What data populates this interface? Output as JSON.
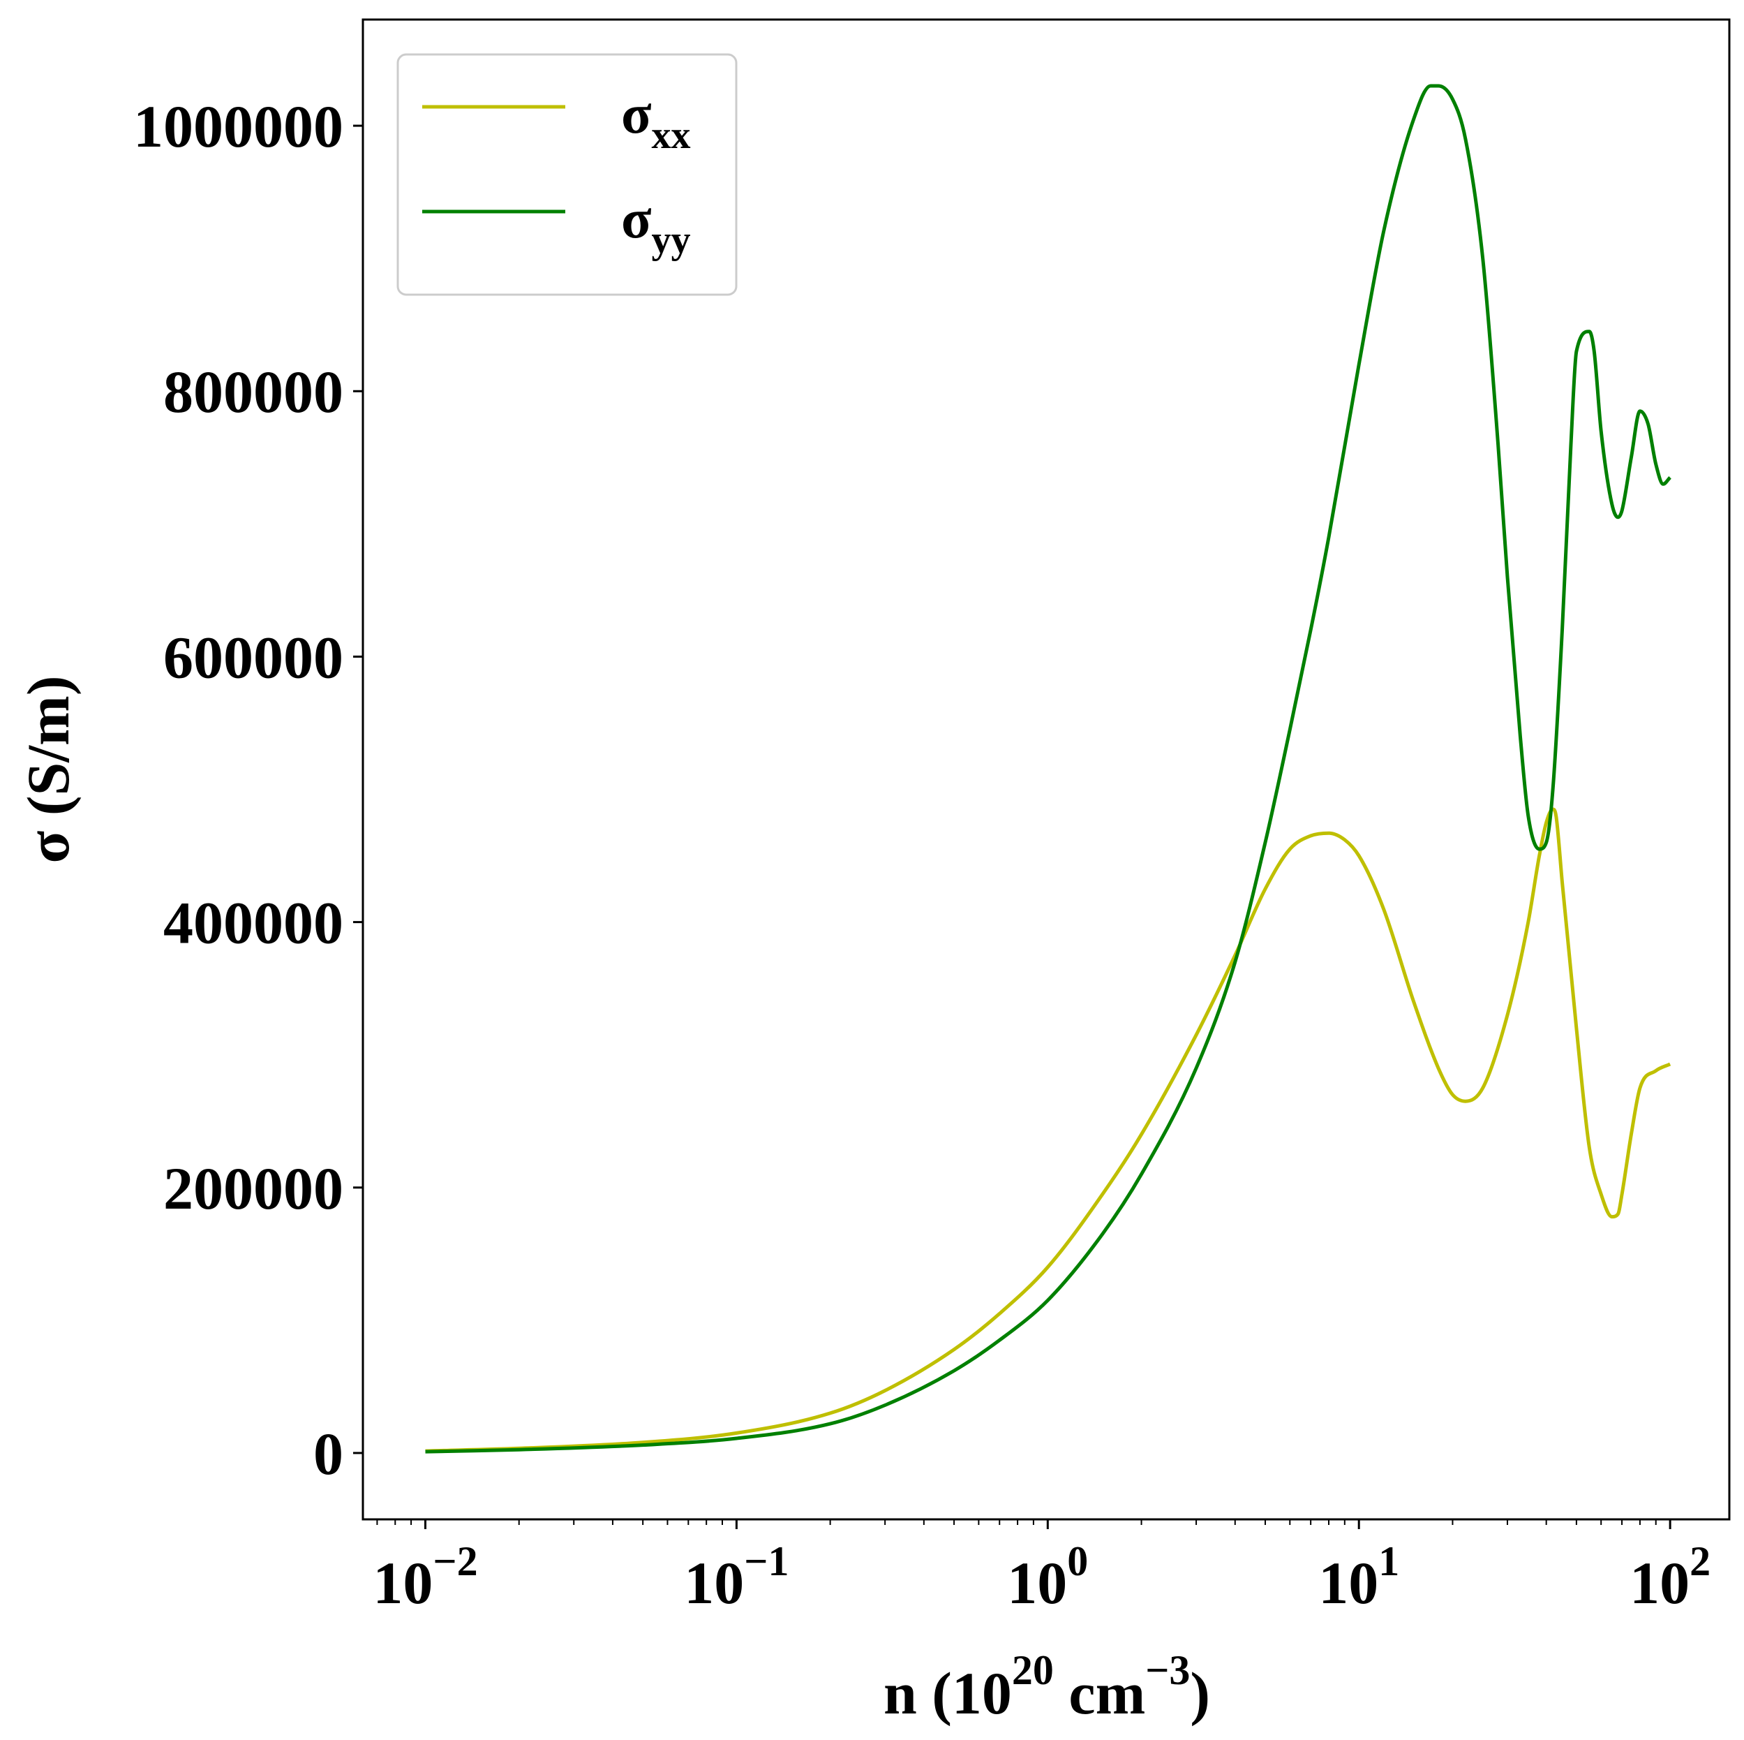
{
  "chart_data": {
    "type": "line",
    "xscale": "log",
    "xlim": [
      0.0063,
      155
    ],
    "ylim": [
      -50000,
      1080000
    ],
    "xlabel": {
      "main": "n (10",
      "sup1": "20",
      "mid": " cm",
      "sup2": "−3",
      "end": ")"
    },
    "ylabel": "σ (S/m)",
    "grid": false,
    "legend_position": "top-left",
    "x_ticks": [
      {
        "value": 0.01,
        "base": "10",
        "exp": "−2"
      },
      {
        "value": 0.1,
        "base": "10",
        "exp": "−1"
      },
      {
        "value": 1,
        "base": "10",
        "exp": "0"
      },
      {
        "value": 10,
        "base": "10",
        "exp": "1"
      },
      {
        "value": 100,
        "base": "10",
        "exp": "2"
      }
    ],
    "y_ticks": [
      0,
      200000,
      400000,
      600000,
      800000,
      1000000
    ],
    "y_tick_labels": [
      "0",
      "200000",
      "400000",
      "600000",
      "800000",
      "1000000"
    ],
    "series": [
      {
        "name": "σ",
        "name_sub": "xx",
        "color": "#bfbf00",
        "x": [
          0.01,
          0.02,
          0.05,
          0.1,
          0.2,
          0.3,
          0.5,
          0.7,
          1,
          1.5,
          2,
          3,
          4,
          5,
          6,
          7,
          8,
          9,
          10,
          12,
          15,
          18,
          20,
          22,
          25,
          30,
          35,
          38,
          40,
          42,
          43,
          45,
          50,
          55,
          60,
          65,
          68,
          70,
          75,
          80,
          90,
          100
        ],
        "y": [
          1500,
          3500,
          8000,
          15000,
          30000,
          47000,
          78000,
          105000,
          140000,
          195000,
          240000,
          315000,
          375000,
          425000,
          455000,
          465000,
          467000,
          462000,
          450000,
          410000,
          340000,
          290000,
          270000,
          265000,
          275000,
          330000,
          400000,
          450000,
          475000,
          485000,
          480000,
          430000,
          320000,
          230000,
          195000,
          178000,
          180000,
          195000,
          240000,
          275000,
          288000,
          293000
        ]
      },
      {
        "name": "σ",
        "name_sub": "yy",
        "color": "#008000",
        "x": [
          0.01,
          0.02,
          0.05,
          0.1,
          0.2,
          0.3,
          0.5,
          0.7,
          1,
          1.5,
          2,
          3,
          4,
          5,
          6,
          7,
          8,
          10,
          12,
          15,
          17,
          18,
          20,
          22,
          25,
          28,
          30,
          33,
          35,
          38,
          40,
          42,
          45,
          48,
          50,
          55,
          57,
          60,
          65,
          68,
          70,
          75,
          80,
          85,
          90,
          95,
          100
        ],
        "y": [
          1000,
          2500,
          6000,
          11000,
          22000,
          36000,
          62000,
          85000,
          115000,
          165000,
          210000,
          290000,
          370000,
          460000,
          545000,
          620000,
          690000,
          820000,
          920000,
          1005000,
          1030000,
          1030000,
          1020000,
          990000,
          900000,
          760000,
          660000,
          540000,
          480000,
          455000,
          460000,
          500000,
          620000,
          760000,
          830000,
          845000,
          830000,
          770000,
          715000,
          705000,
          710000,
          750000,
          785000,
          775000,
          745000,
          730000,
          735000
        ]
      }
    ]
  }
}
